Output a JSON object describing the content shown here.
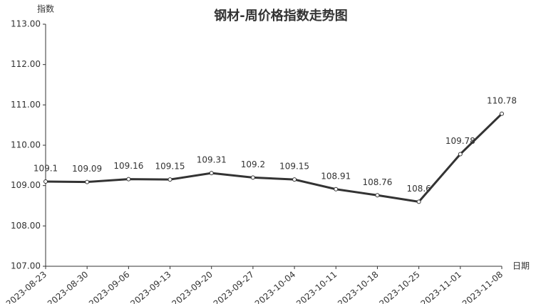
{
  "chart_data": {
    "type": "line",
    "title": "钢材-周价格指数走势图",
    "y_label": "指数",
    "x_label": "日期",
    "categories": [
      "2023-08-23",
      "2023-08-30",
      "2023-09-06",
      "2023-09-13",
      "2023-09-20",
      "2023-09-27",
      "2023-10-04",
      "2023-10-11",
      "2023-10-18",
      "2023-10-25",
      "2023-11-01",
      "2023-11-08"
    ],
    "values": [
      109.1,
      109.09,
      109.16,
      109.15,
      109.31,
      109.2,
      109.15,
      108.91,
      108.76,
      108.6,
      109.78,
      110.78
    ],
    "color": "#333333",
    "ylim": [
      107,
      113
    ],
    "yticks": [
      {
        "value": 107,
        "label": "107.00"
      },
      {
        "value": 108,
        "label": "108.00"
      },
      {
        "value": 109,
        "label": "109.00"
      },
      {
        "value": 110,
        "label": "110.00"
      },
      {
        "value": 111,
        "label": "111.00"
      },
      {
        "value": 112,
        "label": "112.00"
      },
      {
        "value": 113,
        "label": "113.00"
      }
    ],
    "grid": false
  }
}
